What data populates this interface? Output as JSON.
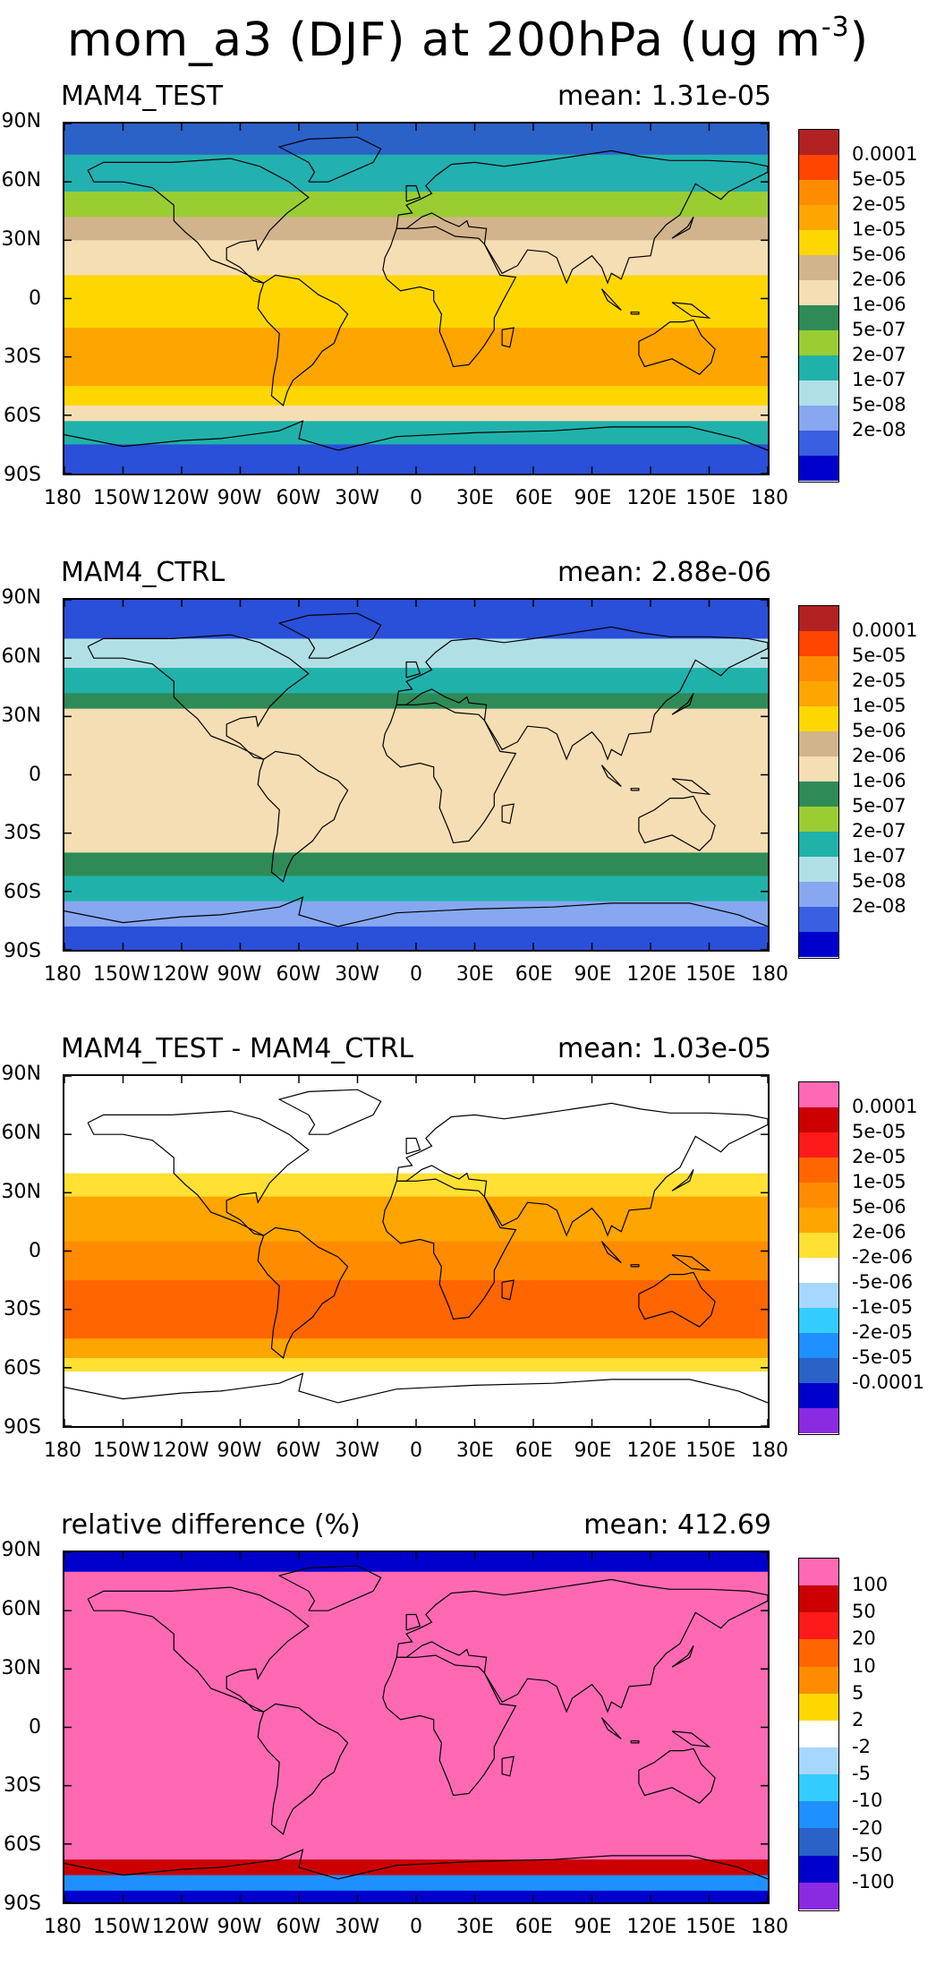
{
  "title": {
    "main": "mom_a3 (DJF) at 200hPa (ug m",
    "sup": "-3",
    "end": ")"
  },
  "lat_labels": [
    "90N",
    "60N",
    "30N",
    "0",
    "30S",
    "60S",
    "90S"
  ],
  "lon_labels": [
    "180",
    "150W",
    "120W",
    "90W",
    "60W",
    "30W",
    "0",
    "30E",
    "60E",
    "90E",
    "120E",
    "150E",
    "180"
  ],
  "panels": [
    {
      "name": "MAM4_TEST",
      "mean": "mean: 1.31e-05",
      "colorbar": {
        "labels": [
          "0.0001",
          "5e-05",
          "2e-05",
          "1e-05",
          "5e-06",
          "2e-06",
          "1e-06",
          "5e-07",
          "2e-07",
          "1e-07",
          "5e-08",
          "2e-08"
        ],
        "colors": [
          "#b22222",
          "#ff4500",
          "#ff8c00",
          "#ffa500",
          "#ffd700",
          "#d2b48c",
          "#f5deb3",
          "#2e8b57",
          "#9acd32",
          "#20b2aa",
          "#b0e0e6",
          "#87a7f0",
          "#3a5fe0",
          "#0000cd"
        ]
      },
      "bands": [
        {
          "lat": [
            90,
            74
          ],
          "color": "#2a62c8"
        },
        {
          "lat": [
            74,
            55
          ],
          "color": "#23b0b0"
        },
        {
          "lat": [
            55,
            42
          ],
          "color": "#9acd32"
        },
        {
          "lat": [
            42,
            30
          ],
          "color": "#d2b48c"
        },
        {
          "lat": [
            30,
            12
          ],
          "color": "#f5deb3"
        },
        {
          "lat": [
            12,
            -15
          ],
          "color": "#ffd700"
        },
        {
          "lat": [
            -15,
            -45
          ],
          "color": "#ffa500"
        },
        {
          "lat": [
            -45,
            -55
          ],
          "color": "#ffd700"
        },
        {
          "lat": [
            -55,
            -63
          ],
          "color": "#f5deb3"
        },
        {
          "lat": [
            -63,
            -75
          ],
          "color": "#20b2aa"
        },
        {
          "lat": [
            -75,
            -90
          ],
          "color": "#2a4fd8"
        }
      ]
    },
    {
      "name": "MAM4_CTRL",
      "mean": "mean: 2.88e-06",
      "colorbar": {
        "labels": [
          "0.0001",
          "5e-05",
          "2e-05",
          "1e-05",
          "5e-06",
          "2e-06",
          "1e-06",
          "5e-07",
          "2e-07",
          "1e-07",
          "5e-08",
          "2e-08"
        ],
        "colors": [
          "#b22222",
          "#ff4500",
          "#ff8c00",
          "#ffa500",
          "#ffd700",
          "#d2b48c",
          "#f5deb3",
          "#2e8b57",
          "#9acd32",
          "#20b2aa",
          "#b0e0e6",
          "#87a7f0",
          "#3a5fe0",
          "#0000cd"
        ]
      },
      "bands": [
        {
          "lat": [
            90,
            70
          ],
          "color": "#2a4fd8"
        },
        {
          "lat": [
            70,
            55
          ],
          "color": "#b0e0e6"
        },
        {
          "lat": [
            55,
            42
          ],
          "color": "#20b2aa"
        },
        {
          "lat": [
            42,
            34
          ],
          "color": "#2e8b57"
        },
        {
          "lat": [
            34,
            -40
          ],
          "color": "#f5deb3"
        },
        {
          "lat": [
            -40,
            -52
          ],
          "color": "#2e8b57"
        },
        {
          "lat": [
            -52,
            -65
          ],
          "color": "#20b2aa"
        },
        {
          "lat": [
            -65,
            -78
          ],
          "color": "#87a7f0"
        },
        {
          "lat": [
            -78,
            -90
          ],
          "color": "#2a4fd8"
        }
      ]
    },
    {
      "name": "MAM4_TEST - MAM4_CTRL",
      "mean": "mean: 1.03e-05",
      "colorbar": {
        "labels": [
          "0.0001",
          "5e-05",
          "2e-05",
          "1e-05",
          "5e-06",
          "2e-06",
          "-2e-06",
          "-5e-06",
          "-1e-05",
          "-2e-05",
          "-5e-05",
          "-0.0001"
        ],
        "colors": [
          "#ff69b4",
          "#cc0000",
          "#ff1a1a",
          "#ff6600",
          "#ff8c00",
          "#ffa500",
          "#ffe033",
          "#ffffff",
          "#a6d8ff",
          "#33ccff",
          "#1e90ff",
          "#2a62c8",
          "#0000cd",
          "#8a2be2"
        ]
      },
      "bands": [
        {
          "lat": [
            90,
            40
          ],
          "color": "#ffffff"
        },
        {
          "lat": [
            40,
            28
          ],
          "color": "#ffe033"
        },
        {
          "lat": [
            28,
            5
          ],
          "color": "#ffa500"
        },
        {
          "lat": [
            5,
            -15
          ],
          "color": "#ff8c00"
        },
        {
          "lat": [
            -15,
            -45
          ],
          "color": "#ff6600"
        },
        {
          "lat": [
            -45,
            -55
          ],
          "color": "#ffa500"
        },
        {
          "lat": [
            -55,
            -62
          ],
          "color": "#ffe033"
        },
        {
          "lat": [
            -62,
            -90
          ],
          "color": "#ffffff"
        }
      ]
    },
    {
      "name": "relative difference (%)",
      "mean": "mean: 412.69",
      "colorbar": {
        "labels": [
          "100",
          "50",
          "20",
          "10",
          "5",
          "2",
          "-2",
          "-5",
          "-10",
          "-20",
          "-50",
          "-100"
        ],
        "colors": [
          "#ff69b4",
          "#cc0000",
          "#ff1a1a",
          "#ff6600",
          "#ff8c00",
          "#ffd700",
          "#ffffff",
          "#a6d8ff",
          "#33ccff",
          "#1e90ff",
          "#2a62c8",
          "#0000cd",
          "#8a2be2"
        ]
      },
      "bands": [
        {
          "lat": [
            90,
            80
          ],
          "color": "#0000cd"
        },
        {
          "lat": [
            80,
            73
          ],
          "color": "#ff69b4"
        },
        {
          "lat": [
            73,
            -68
          ],
          "color": "#ff69b4"
        },
        {
          "lat": [
            -68,
            -76
          ],
          "color": "#cc0000"
        },
        {
          "lat": [
            -76,
            -84
          ],
          "color": "#1e90ff"
        },
        {
          "lat": [
            -84,
            -90
          ],
          "color": "#0000cd"
        }
      ]
    }
  ]
}
